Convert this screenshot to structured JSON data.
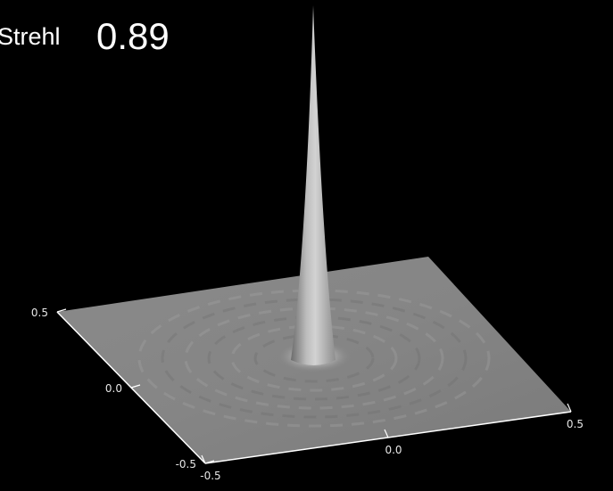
{
  "strehl": {
    "label": "Strehl",
    "value": "0.89"
  },
  "chart_data": {
    "type": "surface",
    "title": "",
    "xlabel": "",
    "ylabel": "",
    "zlabel": "",
    "x_range": [
      -0.5,
      0.5
    ],
    "y_range": [
      -0.5,
      0.5
    ],
    "x_ticks": [
      -0.5,
      0.0,
      0.5
    ],
    "y_ticks": [
      -0.5,
      0.0,
      0.5
    ],
    "x_tick_labels": [
      "-0.5",
      "0.0",
      "0.5"
    ],
    "y_tick_labels": [
      "-0.5",
      "0.0",
      "0.5"
    ],
    "peak_xy": [
      0.0,
      0.0
    ],
    "peak_relative_height": 0.89,
    "grid": false,
    "colors": {
      "background": "#000000",
      "surface": "#8c8c8c",
      "axes": "#ffffff"
    }
  }
}
